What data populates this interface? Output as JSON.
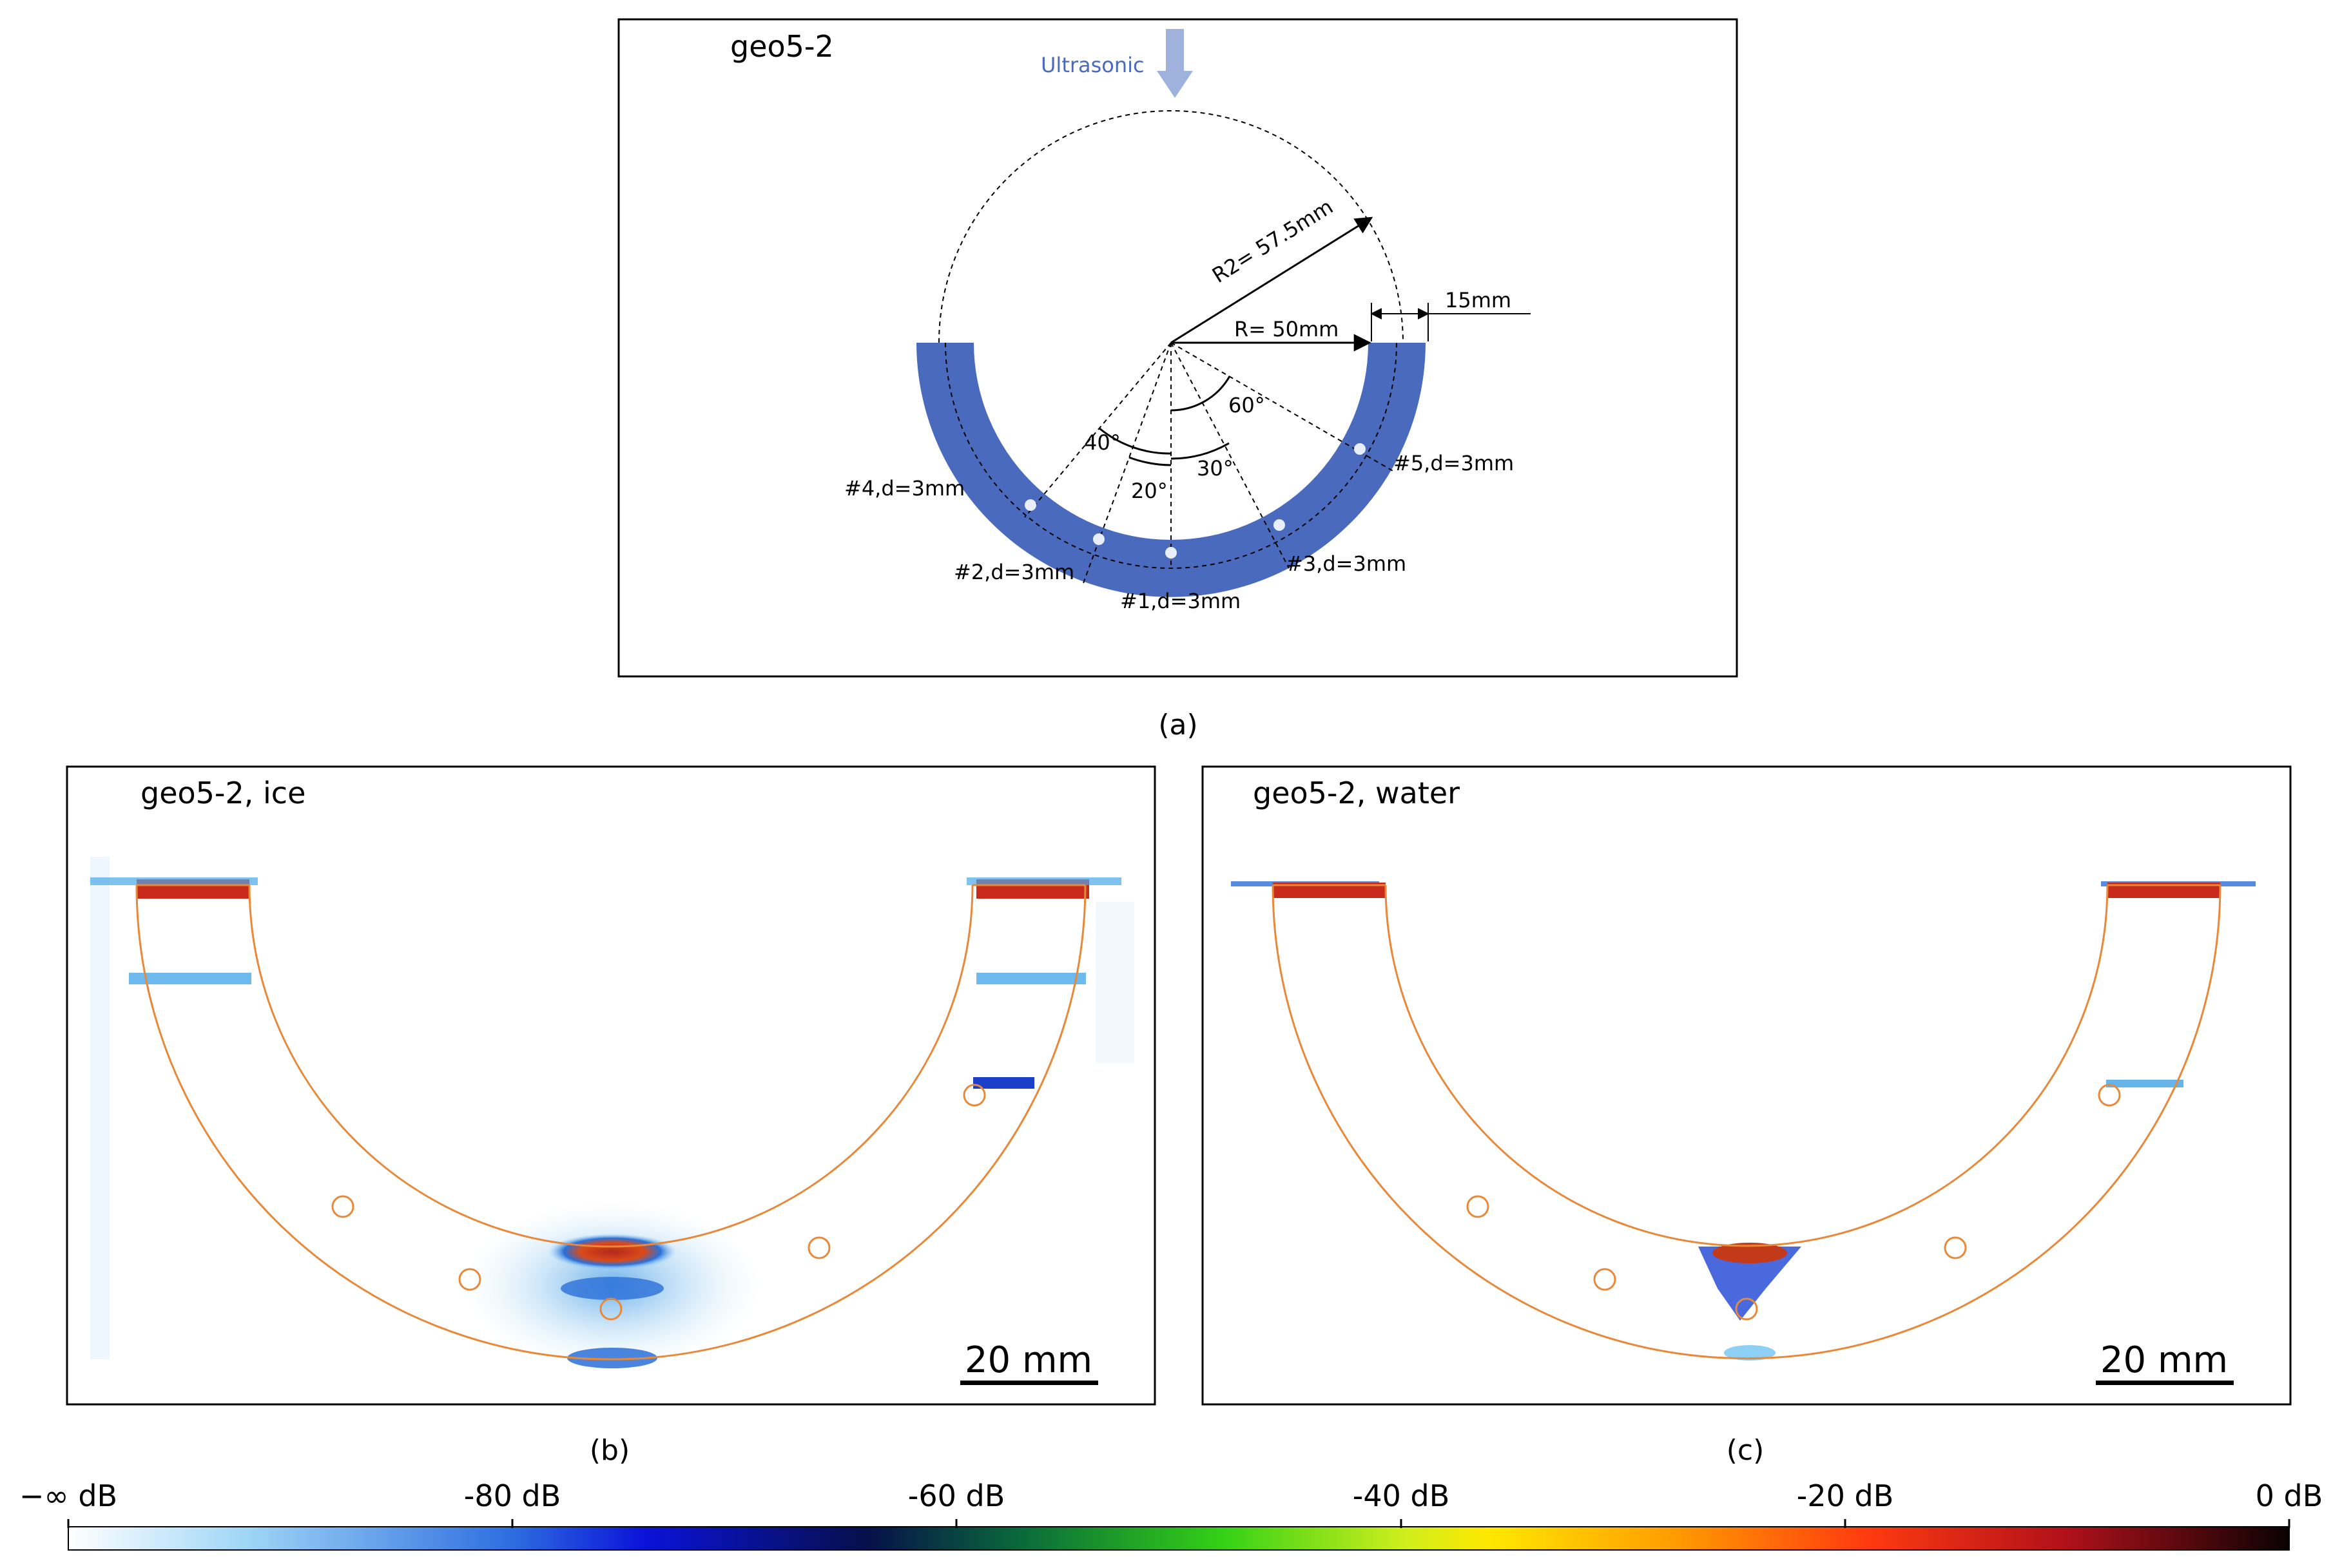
{
  "panel_a": {
    "title": "geo5-2",
    "ultrasonic_label": "Ultrasonic",
    "r2_label": "R2= 57.5mm",
    "r_label": "R= 50mm",
    "thickness_label": "15mm",
    "angles": [
      "60°",
      "40°",
      "30°",
      "20°"
    ],
    "holes": [
      {
        "label": "#1,d=3mm",
        "angle_deg": 0
      },
      {
        "label": "#2,d=3mm",
        "angle_deg": -20
      },
      {
        "label": "#3,d=3mm",
        "angle_deg": 30
      },
      {
        "label": "#4,d=3mm",
        "angle_deg": -40
      },
      {
        "label": "#5,d=3mm",
        "angle_deg": 60
      }
    ],
    "caption": "(a)"
  },
  "panel_b": {
    "title": "geo5-2, ice",
    "scalebar": "20 mm",
    "caption": "(b)"
  },
  "panel_c": {
    "title": "geo5-2, water",
    "scalebar": "20 mm",
    "caption": "(c)"
  },
  "colorbar": {
    "ticks": [
      "−∞ dB",
      "-80 dB",
      "-60 dB",
      "-40 dB",
      "-20 dB",
      "0 dB"
    ]
  },
  "colors": {
    "ring": "#4a6bbd",
    "arrow": "#9fb2dd",
    "outline": "#e8893a",
    "hot": "#c82a1c",
    "cold": "#4aa8e8"
  }
}
